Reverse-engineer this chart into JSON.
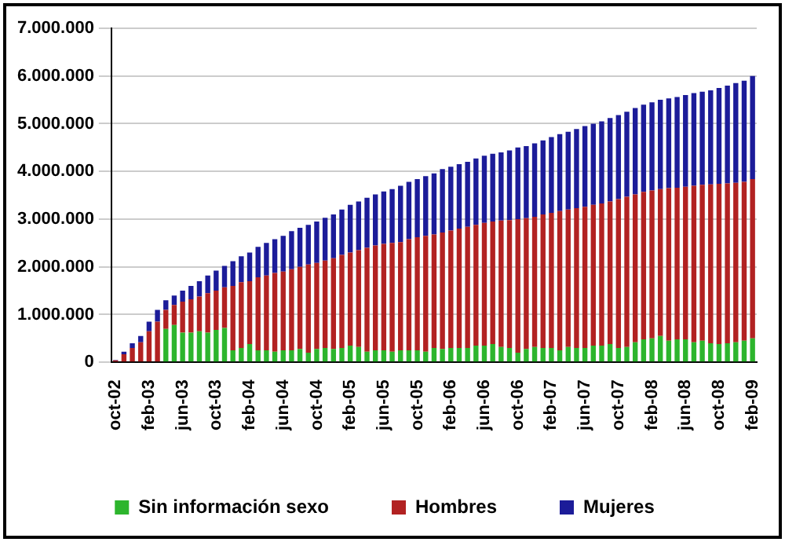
{
  "chart_data": {
    "type": "bar",
    "stacked": true,
    "grid": "y",
    "legend": "bottom",
    "categories": [
      "oct-02",
      null,
      null,
      null,
      "feb-03",
      null,
      null,
      null,
      "jun-03",
      null,
      null,
      null,
      "oct-03",
      null,
      null,
      null,
      "feb-04",
      null,
      null,
      null,
      "jun-04",
      null,
      null,
      null,
      "oct-04",
      null,
      null,
      null,
      "feb-05",
      null,
      null,
      null,
      "jun-05",
      null,
      null,
      null,
      "oct-05",
      null,
      null,
      null,
      "feb-06",
      null,
      null,
      null,
      "jun-06",
      null,
      null,
      null,
      "oct-06",
      null,
      null,
      null,
      "feb-07",
      null,
      null,
      null,
      "jun-07",
      null,
      null,
      null,
      "oct-07",
      null,
      null,
      null,
      "feb-08",
      null,
      null,
      null,
      "jun-08",
      null,
      null,
      null,
      "oct-08",
      null,
      null,
      null,
      "feb-09"
    ],
    "ylim": [
      0,
      7000000
    ],
    "yticks": [
      {
        "value": 0,
        "label": "0"
      },
      {
        "value": 1000000,
        "label": "1.000.000"
      },
      {
        "value": 2000000,
        "label": "2.000.000"
      },
      {
        "value": 3000000,
        "label": "3.000.000"
      },
      {
        "value": 4000000,
        "label": "4.000.000"
      },
      {
        "value": 5000000,
        "label": "5.000.000"
      },
      {
        "value": 6000000,
        "label": "6.000.000"
      },
      {
        "value": 7000000,
        "label": "7.000.000"
      }
    ],
    "series": [
      {
        "name": "Sin información sexo",
        "color": "#2db52d",
        "values": [
          0,
          0,
          0,
          0,
          0,
          0,
          700000,
          780000,
          620000,
          620000,
          650000,
          620000,
          680000,
          720000,
          250000,
          300000,
          380000,
          250000,
          250000,
          220000,
          250000,
          250000,
          280000,
          200000,
          280000,
          300000,
          280000,
          300000,
          350000,
          320000,
          220000,
          250000,
          250000,
          220000,
          250000,
          250000,
          250000,
          220000,
          300000,
          280000,
          300000,
          300000,
          300000,
          350000,
          350000,
          380000,
          320000,
          300000,
          200000,
          280000,
          320000,
          300000,
          300000,
          250000,
          320000,
          300000,
          300000,
          350000,
          350000,
          380000,
          300000,
          320000,
          420000,
          480000,
          500000,
          550000,
          450000,
          480000,
          480000,
          420000,
          450000,
          400000,
          380000,
          400000,
          420000,
          450000,
          500000
        ]
      },
      {
        "name": "Hombres",
        "color": "#b22222",
        "values": [
          40000,
          170000,
          300000,
          420000,
          650000,
          850000,
          400000,
          420000,
          650000,
          700000,
          730000,
          830000,
          820000,
          850000,
          1350000,
          1380000,
          1320000,
          1530000,
          1570000,
          1650000,
          1650000,
          1700000,
          1720000,
          1850000,
          1800000,
          1830000,
          1900000,
          1950000,
          1950000,
          2030000,
          2180000,
          2200000,
          2230000,
          2280000,
          2270000,
          2330000,
          2370000,
          2430000,
          2380000,
          2440000,
          2460000,
          2500000,
          2540000,
          2530000,
          2570000,
          2570000,
          2650000,
          2680000,
          2800000,
          2740000,
          2730000,
          2800000,
          2830000,
          2920000,
          2880000,
          2930000,
          2960000,
          2950000,
          2980000,
          2990000,
          3120000,
          3150000,
          3100000,
          3090000,
          3100000,
          3080000,
          3200000,
          3180000,
          3200000,
          3280000,
          3270000,
          3330000,
          3360000,
          3350000,
          3340000,
          3330000,
          3340000
        ]
      },
      {
        "name": "Mujeres",
        "color": "#1c1c99",
        "values": [
          10000,
          50000,
          100000,
          130000,
          200000,
          250000,
          200000,
          200000,
          230000,
          280000,
          320000,
          370000,
          420000,
          450000,
          520000,
          540000,
          600000,
          640000,
          680000,
          710000,
          750000,
          800000,
          820000,
          830000,
          870000,
          900000,
          920000,
          950000,
          1000000,
          1020000,
          1050000,
          1070000,
          1100000,
          1130000,
          1180000,
          1200000,
          1220000,
          1250000,
          1280000,
          1330000,
          1340000,
          1350000,
          1360000,
          1390000,
          1410000,
          1420000,
          1430000,
          1460000,
          1500000,
          1510000,
          1540000,
          1550000,
          1590000,
          1610000,
          1630000,
          1660000,
          1690000,
          1700000,
          1720000,
          1750000,
          1760000,
          1780000,
          1810000,
          1830000,
          1850000,
          1870000,
          1880000,
          1900000,
          1920000,
          1940000,
          1950000,
          1970000,
          2010000,
          2050000,
          2090000,
          2120000,
          2160000
        ]
      }
    ]
  }
}
